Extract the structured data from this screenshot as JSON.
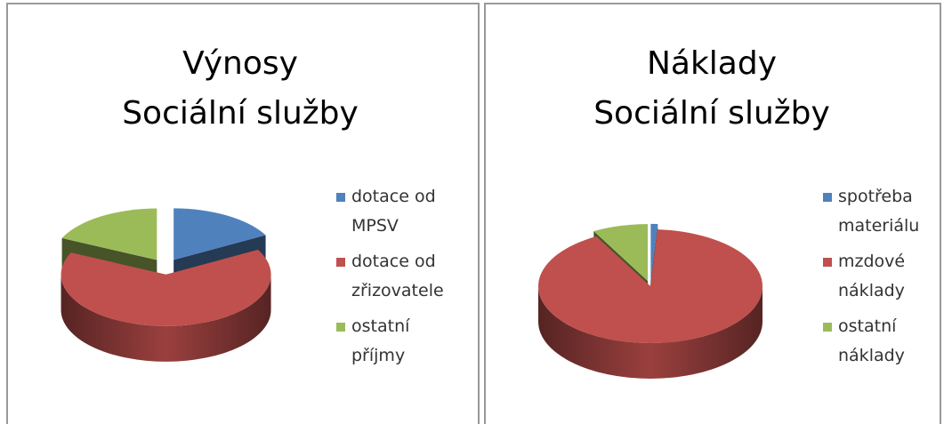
{
  "chart_data": [
    {
      "type": "pie",
      "title": [
        "Výnosy",
        "Sociální služby"
      ],
      "categories": [
        "dotace od MPSV",
        "dotace od zřizovatele",
        "ostatní příjmy"
      ],
      "values": [
        17,
        65,
        18
      ],
      "colors": [
        "#4f81bd",
        "#c0504d",
        "#9bbb59"
      ]
    },
    {
      "type": "pie",
      "title": [
        "Náklady",
        "Sociální služby"
      ],
      "categories": [
        "spotřeba materiálu",
        "mzdové náklady",
        "ostatní náklady"
      ],
      "values": [
        1,
        91,
        8
      ],
      "colors": [
        "#4f81bd",
        "#c0504d",
        "#9bbb59"
      ]
    }
  ]
}
